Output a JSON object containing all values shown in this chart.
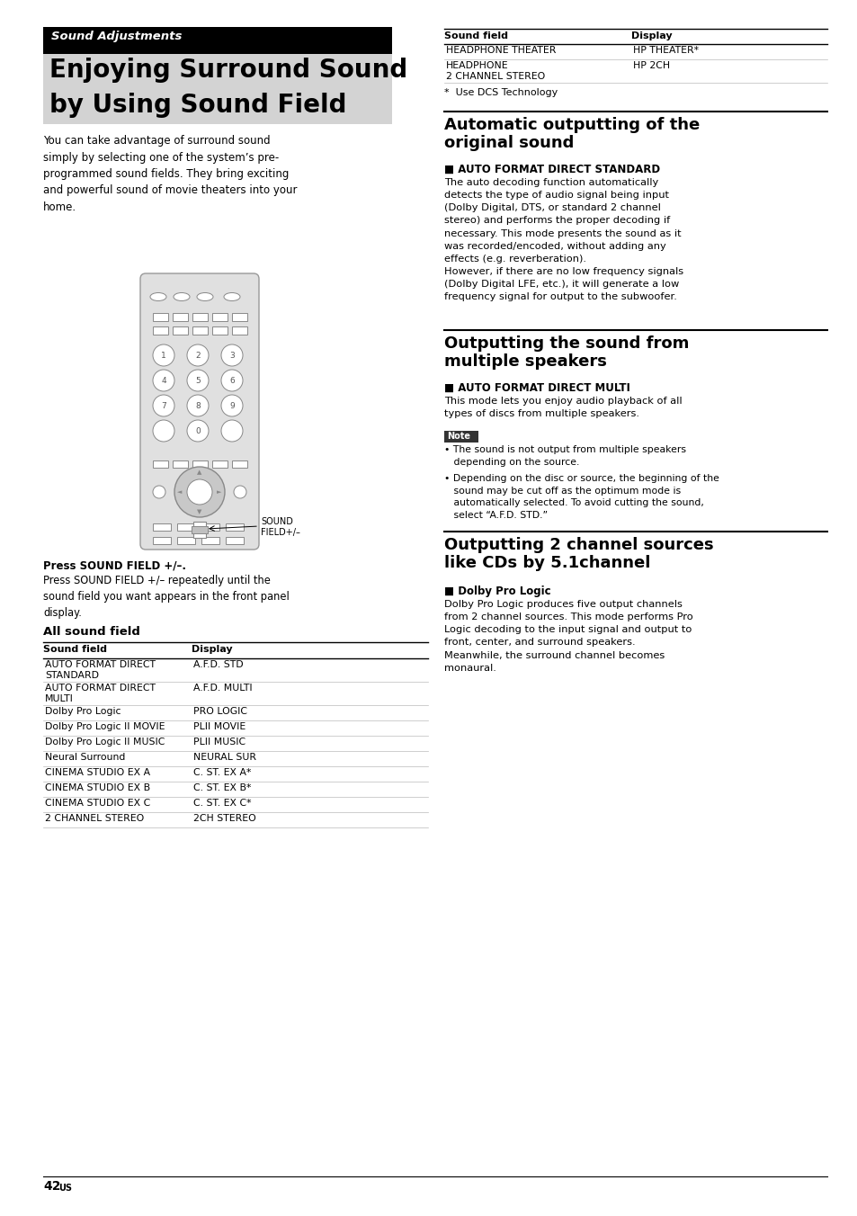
{
  "page_bg": "#ffffff",
  "page_number": "42",
  "page_number_sup": "US",
  "sound_adjustments_label": "Sound Adjustments",
  "main_title_line1": "Enjoying Surround Sound",
  "main_title_line2": "by Using Sound Field",
  "intro_text": "You can take advantage of surround sound\nsimply by selecting one of the system’s pre-\nprogrammed sound fields. They bring exciting\nand powerful sound of movie theaters into your\nhome.",
  "press_sound_field_bold": "Press SOUND FIELD +/–.",
  "press_sound_field_body": "Press SOUND FIELD +/– repeatedly until the\nsound field you want appears in the front panel\ndisplay.",
  "all_sound_field_title": "All sound field",
  "table1_headers": [
    "Sound field",
    "Display"
  ],
  "table1_rows": [
    [
      "AUTO FORMAT DIRECT  STANDARD",
      "A.F.D. STD"
    ],
    [
      "AUTO FORMAT DIRECT  MULTI",
      "A.F.D. MULTI"
    ],
    [
      "Dolby Pro Logic",
      "PRO LOGIC"
    ],
    [
      "Dolby Pro Logic II MOVIE",
      "PLII MOVIE"
    ],
    [
      "Dolby Pro Logic II MUSIC",
      "PLII MUSIC"
    ],
    [
      "Neural Surround",
      "NEURAL SUR"
    ],
    [
      "CINEMA STUDIO EX A",
      "C. ST. EX A*"
    ],
    [
      "CINEMA STUDIO EX B",
      "C. ST. EX B*"
    ],
    [
      "CINEMA STUDIO EX C",
      "C. ST. EX C*"
    ],
    [
      "2 CHANNEL STEREO",
      "2CH STEREO"
    ]
  ],
  "table1_rows_2line": [
    true,
    true,
    false,
    false,
    false,
    false,
    false,
    false,
    false,
    false
  ],
  "table2_headers": [
    "Sound field",
    "Display"
  ],
  "table2_rows": [
    [
      "HEADPHONE THEATER",
      "HP THEATER*"
    ],
    [
      "HEADPHONE\n2 CHANNEL STEREO",
      "HP 2CH"
    ]
  ],
  "table2_rows_2line": [
    false,
    true
  ],
  "dcs_note": "*  Use DCS Technology",
  "auto_output_title1": "Automatic outputting of the",
  "auto_output_title2": "original sound",
  "auto_format_direct_std_header": "■ AUTO FORMAT DIRECT STANDARD",
  "auto_format_direct_std_body": "The auto decoding function automatically\ndetects the type of audio signal being input\n(Dolby Digital, DTS, or standard 2 channel\nstereo) and performs the proper decoding if\nnecessary. This mode presents the sound as it\nwas recorded/encoded, without adding any\neffects (e.g. reverberation).\nHowever, if there are no low frequency signals\n(Dolby Digital LFE, etc.), it will generate a low\nfrequency signal for output to the subwoofer.",
  "output_multiple_title1": "Outputting the sound from",
  "output_multiple_title2": "multiple speakers",
  "auto_format_direct_multi_header": "■ AUTO FORMAT DIRECT MULTI",
  "auto_format_direct_multi_body": "This mode lets you enjoy audio playback of all\ntypes of discs from multiple speakers.",
  "note_label": "Note",
  "note_bullet1": "• The sound is not output from multiple speakers\n   depending on the source.",
  "note_bullet2": "• Depending on the disc or source, the beginning of the\n   sound may be cut off as the optimum mode is\n   automatically selected. To avoid cutting the sound,\n   select “A.F.D. STD.”",
  "output_2ch_title1": "Outputting 2 channel sources",
  "output_2ch_title2": "like CDs by 5.1channel",
  "dolby_pro_logic_header": "■ Dolby Pro Logic",
  "dolby_pro_logic_body": "Dolby Pro Logic produces five output channels\nfrom 2 channel sources. This mode performs Pro\nLogic decoding to the input signal and output to\nfront, center, and surround speakers.\nMeanwhile, the surround channel becomes\nmonaural.",
  "sound_field_label": "SOUND\nFIELD+/–"
}
